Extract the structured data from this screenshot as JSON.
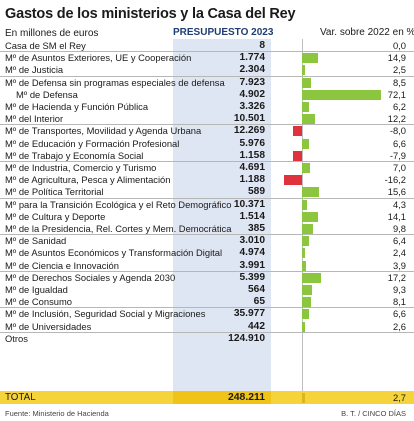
{
  "title": "Gastos de los ministerios y la Casa del Rey",
  "units": "En millones de euros",
  "budget_header": "PRESUPUESTO 2023",
  "variation_header": "Var. sobre 2022 en %",
  "source": "Fuente: Ministerio de Hacienda",
  "credit": "B. T. / CINCO DÍAS",
  "colors": {
    "positive": "#8cc63f",
    "negative": "#e0323c",
    "budget_bg": "#dfe6f3",
    "total_bg": "#f5d33a",
    "budget_header": "#1f3d73"
  },
  "chart_data": {
    "type": "table",
    "title": "Gastos de los ministerios y la Casa del Rey",
    "rows": [
      {
        "label": "Casa de SM el Rey",
        "budget": "8",
        "variation": 0.0,
        "variation_label": "0,0"
      },
      {
        "label": "Mº de Asuntos Exteriores, UE y Cooperación",
        "budget": "1.774",
        "variation": 14.9,
        "variation_label": "14,9"
      },
      {
        "label": "Mº de Justicia",
        "budget": "2.304",
        "variation": 2.5,
        "variation_label": "2,5"
      },
      {
        "label": "Mº de Defensa sin programas especiales de defensa",
        "budget": "7.923",
        "variation": 8.5,
        "variation_label": "8,5"
      },
      {
        "label": "Mº de Defensa",
        "budget": "4.902",
        "variation": 72.1,
        "variation_label": "72,1"
      },
      {
        "label": "Mº de Hacienda y Función Pública",
        "budget": "3.326",
        "variation": 6.2,
        "variation_label": "6,2"
      },
      {
        "label": "Mº del Interior",
        "budget": "10.501",
        "variation": 12.2,
        "variation_label": "12,2"
      },
      {
        "label": "Mº de Transportes, Movilidad y Agenda Urbana",
        "budget": "12.269",
        "variation": -8.0,
        "variation_label": "-8,0"
      },
      {
        "label": "Mº de Educación y Formación Profesional",
        "budget": "5.976",
        "variation": 6.6,
        "variation_label": "6,6"
      },
      {
        "label": "Mº de Trabajo y Economía Social",
        "budget": "1.158",
        "variation": -7.9,
        "variation_label": "-7,9"
      },
      {
        "label": "Mº de Industria, Comercio y Turismo",
        "budget": "4.691",
        "variation": 7.0,
        "variation_label": "7,0"
      },
      {
        "label": "Mº de Agricultura, Pesca y Alimentación",
        "budget": "1.188",
        "variation": -16.2,
        "variation_label": "-16,2"
      },
      {
        "label": "Mº de Política Territorial",
        "budget": "589",
        "variation": 15.6,
        "variation_label": "15,6"
      },
      {
        "label": "Mº para la Transición Ecológica y el Reto Demográfico",
        "budget": "10.371",
        "variation": 4.3,
        "variation_label": "4,3"
      },
      {
        "label": "Mº de Cultura y Deporte",
        "budget": "1.514",
        "variation": 14.1,
        "variation_label": "14,1"
      },
      {
        "label": "Mº de la Presidencia, Rel. Cortes y Mem. Democrática",
        "budget": "385",
        "variation": 9.8,
        "variation_label": "9,8"
      },
      {
        "label": "Mº de Sanidad",
        "budget": "3.010",
        "variation": 6.4,
        "variation_label": "6,4"
      },
      {
        "label": "Mº de Asuntos Económicos y Transformación Digital",
        "budget": "4.974",
        "variation": 2.4,
        "variation_label": "2,4"
      },
      {
        "label": "Mº de Ciencia e Innovación",
        "budget": "3.991",
        "variation": 3.9,
        "variation_label": "3,9"
      },
      {
        "label": "Mº de Derechos Sociales y Agenda 2030",
        "budget": "5.399",
        "variation": 17.2,
        "variation_label": "17,2"
      },
      {
        "label": "Mº de Igualdad",
        "budget": "564",
        "variation": 9.3,
        "variation_label": "9,3"
      },
      {
        "label": "Mº de Consumo",
        "budget": "65",
        "variation": 8.1,
        "variation_label": "8,1"
      },
      {
        "label": "Mº de Inclusión, Seguridad Social y Migraciones",
        "budget": "35.977",
        "variation": 6.6,
        "variation_label": "6,6"
      },
      {
        "label": "Mº de Universidades",
        "budget": "442",
        "variation": 2.6,
        "variation_label": "2,6"
      },
      {
        "label": "Otros",
        "budget": "124.910",
        "variation": null,
        "variation_label": ""
      }
    ],
    "total": {
      "label": "TOTAL",
      "budget": "248.211",
      "variation": 2.7,
      "variation_label": "2,7"
    }
  }
}
